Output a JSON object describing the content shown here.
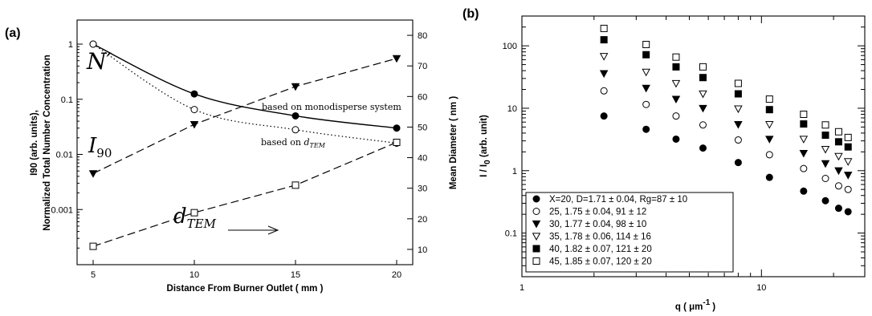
{
  "chart_data": [
    {
      "panel": "(a)",
      "type": "line",
      "xlabel": "Distance From Burner Outlet ( mm  )",
      "ylabel_left_line1": "I90 (arb. units),",
      "ylabel_left_line2": "Normalized Total Number Concentration",
      "ylabel_right": "Mean Diameter ( nm )",
      "x_ticks": [
        "5",
        "10",
        "15",
        "20"
      ],
      "xlim": [
        5,
        20
      ],
      "y_left_scale": "log",
      "ylim_left": [
        0.0001,
        1
      ],
      "y_left_ticks": [
        "1",
        "0.1",
        "0.01",
        "0.001"
      ],
      "ylim_right": [
        5,
        85
      ],
      "y_right_ticks": [
        "10",
        "20",
        "30",
        "40",
        "50",
        "60",
        "70",
        "80"
      ],
      "series": [
        {
          "name": "N′",
          "axis": "left",
          "style": "solid",
          "marker": "filled-circle",
          "x": [
            5,
            10,
            15,
            20
          ],
          "y": [
            1.0,
            0.125,
            0.05,
            0.03
          ]
        },
        {
          "name": "",
          "axis": "left",
          "style": "dotted",
          "marker": "open-circle",
          "x": [
            5,
            10,
            15,
            20
          ],
          "y": [
            1.0,
            0.065,
            0.028,
            0.016
          ]
        },
        {
          "name": "I90",
          "axis": "left",
          "style": "dashed",
          "marker": "filled-triangle",
          "x": [
            5,
            10,
            15,
            20
          ],
          "y": [
            0.0045,
            0.035,
            0.17,
            0.55
          ]
        },
        {
          "name": "dTEM",
          "axis": "right",
          "style": "dashed",
          "marker": "open-square",
          "x": [
            5,
            10,
            15,
            20
          ],
          "y": [
            11,
            22,
            31,
            45
          ]
        }
      ],
      "annotations": {
        "n_prime": "N′",
        "i90_main": "I",
        "i90_sub": "90",
        "dtem_main": "d",
        "dtem_sub": "TEM",
        "mono": "based on monodisperse system",
        "based_on": "based on ",
        "based_d": "d",
        "based_sub": "TEM"
      }
    },
    {
      "panel": "(b)",
      "type": "scatter",
      "xlabel": "q ( μm",
      "xlabel_sup": "-1",
      "xlabel_end": ")",
      "ylabel": "I / I",
      "ylabel_sub": "0",
      "ylabel_end": " (arb. unit)",
      "x_scale": "log",
      "xlim": [
        1,
        27
      ],
      "x_ticks": [
        "1",
        "10"
      ],
      "y_scale": "log",
      "ylim": [
        0.02,
        300
      ],
      "y_ticks": [
        "100",
        "10",
        "1",
        "0.1"
      ],
      "x": [
        2.2,
        3.3,
        4.4,
        5.7,
        8.0,
        10.8,
        15.0,
        18.5,
        21.0,
        23.0
      ],
      "series": [
        {
          "name": "X=20,  D=1.71 ± 0.04, Rg=87 ± 10",
          "marker": "filled-circle",
          "y": [
            7.5,
            4.6,
            3.2,
            2.3,
            1.35,
            0.78,
            0.47,
            0.33,
            0.25,
            0.22
          ]
        },
        {
          "name": "25,     1.75 ± 0.04,     91 ± 12",
          "marker": "open-circle",
          "y": [
            19,
            11.5,
            7.5,
            5.4,
            3.1,
            1.8,
            1.08,
            0.75,
            0.57,
            0.5
          ]
        },
        {
          "name": "30,     1.77 ± 0.04,     98 ± 10",
          "marker": "filled-triangle",
          "y": [
            36,
            21,
            14,
            10,
            5.5,
            3.2,
            1.9,
            1.3,
            1.0,
            0.85
          ]
        },
        {
          "name": "35,     1.78 ± 0.06,   114 ± 16",
          "marker": "open-triangle",
          "y": [
            68,
            38,
            25,
            17,
            9.8,
            5.5,
            3.2,
            2.2,
            1.7,
            1.4
          ]
        },
        {
          "name": "40,     1.82 ± 0.07,   121 ± 20",
          "marker": "filled-square",
          "y": [
            125,
            72,
            46,
            31,
            17,
            9.5,
            5.6,
            3.7,
            2.9,
            2.4
          ]
        },
        {
          "name": "45,     1.85 ± 0.07,   120 ± 20",
          "marker": "open-square",
          "y": [
            190,
            105,
            66,
            46,
            25,
            14,
            8.0,
            5.4,
            4.2,
            3.4
          ]
        }
      ]
    }
  ]
}
